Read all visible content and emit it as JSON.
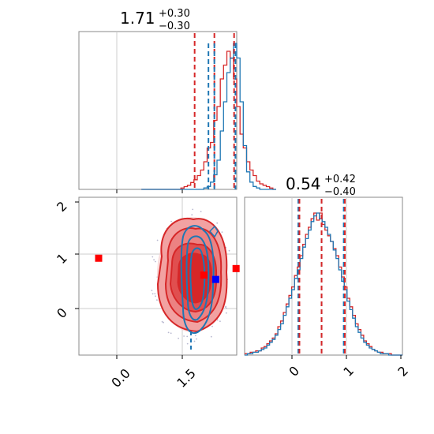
{
  "chart_data": {
    "type": "corner",
    "grid": true,
    "colors": {
      "red": "#d62728",
      "blue": "#1f77b4",
      "red_light": "#f2a2a2",
      "red_mid": "#e46262",
      "marker_red": "#ff0000",
      "marker_blue": "#0000ff"
    },
    "params": [
      {
        "title_main": "1.71",
        "title_plus": "+0.30",
        "title_minus": "−0.30",
        "range": [
          -0.35,
          2.05
        ],
        "ticks": [
          0.0,
          1.5
        ],
        "tick_labels": [
          "0.0",
          "1.5"
        ]
      },
      {
        "title_main": "0.54",
        "title_plus": "+0.42",
        "title_minus": "−0.40",
        "range": [
          -0.85,
          2.0
        ],
        "ticks": [
          0,
          1,
          2
        ],
        "tick_labels": [
          "0",
          "1",
          "2"
        ]
      }
    ],
    "panel_00": {
      "type": "histogram",
      "red_quantiles": [
        1.41,
        1.71,
        2.01
      ],
      "blue_quantiles": [
        1.62,
        1.71,
        2.03
      ],
      "bins_start": 0.6,
      "bin_width": 0.05,
      "red_counts": [
        0,
        0,
        0,
        0,
        0,
        0,
        0,
        0,
        0,
        0,
        0,
        0,
        1,
        2,
        3,
        5,
        7,
        10,
        14,
        20,
        30,
        34,
        50,
        60,
        80,
        90,
        100,
        95,
        80,
        60,
        40,
        30,
        20,
        14,
        10,
        6,
        4,
        3,
        2,
        1,
        0
      ],
      "blue_counts": [
        0,
        0,
        0,
        0,
        0,
        0,
        0,
        0,
        0,
        0,
        0,
        0,
        0,
        0,
        0,
        0,
        0,
        0,
        0,
        1,
        2,
        5,
        10,
        20,
        40,
        60,
        80,
        90,
        100,
        90,
        60,
        30,
        12,
        5,
        2,
        1,
        0,
        0,
        0,
        0,
        0
      ]
    },
    "panel_11": {
      "type": "histogram",
      "red_quantiles": [
        0.14,
        0.54,
        0.96
      ],
      "blue_quantiles": [
        0.12,
        0.54,
        0.94
      ],
      "bins_start": -0.85,
      "bin_width": 0.05,
      "red_counts": [
        1,
        1,
        2,
        2,
        3,
        3,
        5,
        6,
        8,
        10,
        12,
        15,
        20,
        24,
        30,
        36,
        42,
        48,
        56,
        62,
        70,
        78,
        85,
        90,
        96,
        100,
        95,
        100,
        92,
        88,
        84,
        80,
        75,
        70,
        62,
        55,
        48,
        40,
        34,
        28,
        22,
        18,
        14,
        10,
        8,
        6,
        4,
        3,
        2,
        2,
        1,
        1,
        1,
        0,
        0,
        0,
        0
      ],
      "blue_counts": [
        0,
        1,
        1,
        2,
        2,
        3,
        4,
        5,
        7,
        9,
        11,
        14,
        18,
        22,
        28,
        34,
        40,
        46,
        54,
        60,
        68,
        76,
        82,
        88,
        94,
        98,
        100,
        96,
        94,
        90,
        85,
        80,
        74,
        68,
        60,
        52,
        46,
        38,
        32,
        26,
        20,
        16,
        12,
        9,
        7,
        5,
        4,
        3,
        2,
        1,
        1,
        1,
        0,
        0,
        0,
        0,
        0
      ]
    },
    "panel_10": {
      "type": "2d_contour",
      "x_range": [
        -0.35,
        2.05
      ],
      "y_range": [
        -0.85,
        2.05
      ],
      "red_marker": [
        -0.05,
        0.93
      ],
      "red_markers_extra": [
        [
          1.55,
          0.62
        ],
        [
          2.04,
          0.74
        ]
      ],
      "blue_marker": [
        1.73,
        0.54
      ],
      "y_ticks": [
        0,
        1,
        2
      ],
      "y_tick_labels": [
        "0",
        "1",
        "2"
      ]
    }
  }
}
